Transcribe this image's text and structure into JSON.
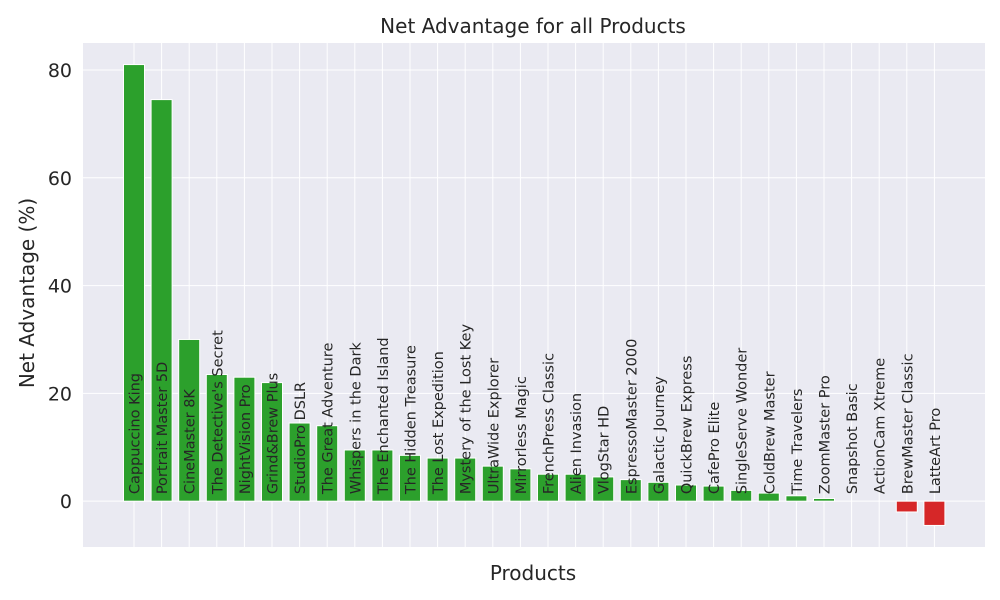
{
  "chart_data": {
    "type": "bar",
    "title": "Net Advantage for all Products",
    "xlabel": "Products",
    "ylabel": "Net Advantage (%)",
    "ylim": [
      -8.5,
      85
    ],
    "yticks": [
      0,
      20,
      40,
      60,
      80
    ],
    "grid": true,
    "background": "#eaeaf2",
    "colors": {
      "positive": "#2ca02c",
      "negative": "#d62728"
    },
    "categories": [
      "Cappuccino King",
      "Portrait Master 5D",
      "CineMaster 8K",
      "The Detective's Secret",
      "NightVision Pro",
      "Grind&Brew Plus",
      "StudioPro DSLR",
      "The Great Adventure",
      "Whispers in the Dark",
      "The Enchanted Island",
      "The Hidden Treasure",
      "The Lost Expedition",
      "Mystery of the Lost Key",
      "UltraWide Explorer",
      "Mirrorless Magic",
      "FrenchPress Classic",
      "Alien Invasion",
      "VlogStar HD",
      "EspressoMaster 2000",
      "Galactic Journey",
      "QuickBrew Express",
      "CafePro Elite",
      "SingleServe Wonder",
      "ColdBrew Master",
      "Time Travelers",
      "ZoomMaster Pro",
      "Snapshot Basic",
      "ActionCam Xtreme",
      "BrewMaster Classic",
      "LatteArt Pro"
    ],
    "values": [
      81.0,
      74.5,
      30.0,
      23.5,
      23.0,
      22.0,
      14.5,
      14.0,
      9.5,
      9.5,
      8.5,
      8.0,
      8.0,
      6.5,
      6.0,
      5.0,
      5.0,
      4.5,
      4.0,
      3.5,
      3.0,
      2.8,
      2.0,
      1.5,
      1.0,
      0.5,
      0.0,
      0.0,
      -2.0,
      -4.5
    ]
  }
}
